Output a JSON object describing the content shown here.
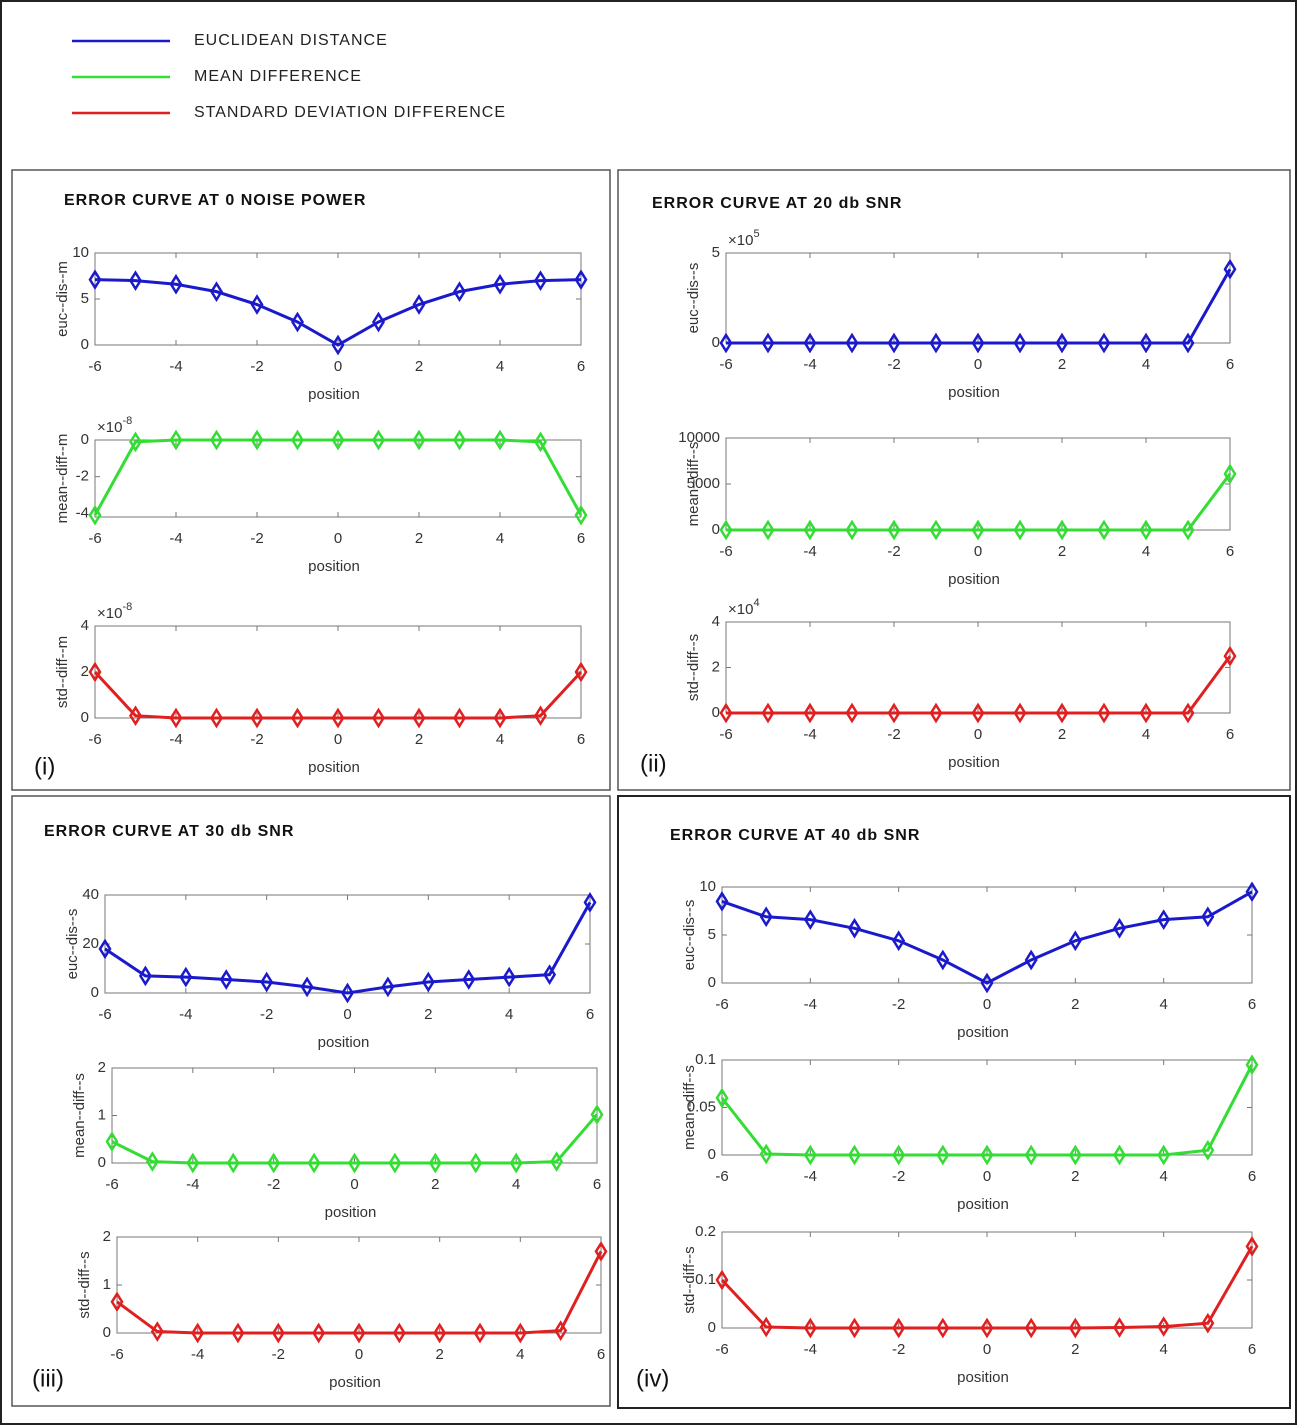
{
  "chart_data": [
    {
      "type": "line",
      "title": "ERROR CURVE AT 0 NOISE POWER",
      "tag": "(i)",
      "xlabel": "position",
      "ylabel": "euc--dis--m",
      "x": [
        -6,
        -5,
        -4,
        -3,
        -2,
        -1,
        0,
        1,
        2,
        3,
        4,
        5,
        6
      ],
      "xlim": [
        -6,
        6
      ],
      "xticks": [
        -6,
        -4,
        -2,
        0,
        2,
        4,
        6
      ],
      "ylim": [
        0,
        10
      ],
      "yticks": [
        0,
        5,
        10
      ],
      "series": [
        {
          "name": "EUCLIDEAN DISTANCE",
          "color": "#1a1acc",
          "values": [
            7.1,
            7,
            6.6,
            5.8,
            4.4,
            2.5,
            0,
            2.5,
            4.4,
            5.8,
            6.6,
            7,
            7.1
          ]
        }
      ]
    },
    {
      "type": "line",
      "xlabel": "position",
      "ylabel": "mean--diff--m",
      "y_multiplier": [
        "×10",
        "-8"
      ],
      "x": [
        -6,
        -5,
        -4,
        -3,
        -2,
        -1,
        0,
        1,
        2,
        3,
        4,
        5,
        6
      ],
      "xlim": [
        -6,
        6
      ],
      "xticks": [
        -6,
        -4,
        -2,
        0,
        2,
        4,
        6
      ],
      "ylim": [
        -4.2,
        0
      ],
      "yticks": [
        -4,
        -2,
        0
      ],
      "series": [
        {
          "name": "MEAN DIFFERENCE",
          "color": "#33dd33",
          "values": [
            -4.1,
            -0.1,
            0,
            0,
            0,
            0,
            0,
            0,
            0,
            0,
            0,
            -0.1,
            -4.1
          ]
        }
      ]
    },
    {
      "type": "line",
      "xlabel": "position",
      "ylabel": "std--diff--m",
      "y_multiplier": [
        "×10",
        "-8"
      ],
      "x": [
        -6,
        -5,
        -4,
        -3,
        -2,
        -1,
        0,
        1,
        2,
        3,
        4,
        5,
        6
      ],
      "xlim": [
        -6,
        6
      ],
      "xticks": [
        -6,
        -4,
        -2,
        0,
        2,
        4,
        6
      ],
      "ylim": [
        0,
        4
      ],
      "yticks": [
        0,
        2,
        4
      ],
      "series": [
        {
          "name": "STANDARD DEVIATION DIFFERENCE",
          "color": "#e02020",
          "values": [
            2,
            0.1,
            0,
            0,
            0,
            0,
            0,
            0,
            0,
            0,
            0,
            0.1,
            2
          ]
        }
      ]
    },
    {
      "type": "line",
      "title": "ERROR CURVE AT 20 db SNR",
      "tag": "(ii)",
      "xlabel": "position",
      "ylabel": "euc--dis--s",
      "y_multiplier": [
        "×10",
        "5"
      ],
      "x": [
        -6,
        -5,
        -4,
        -3,
        -2,
        -1,
        0,
        1,
        2,
        3,
        4,
        5,
        6
      ],
      "xlim": [
        -6,
        6
      ],
      "xticks": [
        -6,
        -4,
        -2,
        0,
        2,
        4,
        6
      ],
      "ylim": [
        0,
        5
      ],
      "yticks": [
        0,
        5
      ],
      "series": [
        {
          "color": "#1a1acc",
          "values": [
            0,
            0,
            0,
            0,
            0,
            0,
            0,
            0,
            0,
            0,
            0,
            0,
            4.1
          ]
        }
      ]
    },
    {
      "type": "line",
      "xlabel": "position",
      "ylabel": "mean--diff--s",
      "x": [
        -6,
        -5,
        -4,
        -3,
        -2,
        -1,
        0,
        1,
        2,
        3,
        4,
        5,
        6
      ],
      "xlim": [
        -6,
        6
      ],
      "xticks": [
        -6,
        -4,
        -2,
        0,
        2,
        4,
        6
      ],
      "ylim": [
        0,
        10000
      ],
      "yticks": [
        0,
        5000,
        10000
      ],
      "series": [
        {
          "color": "#33dd33",
          "values": [
            0,
            0,
            0,
            0,
            0,
            0,
            0,
            0,
            0,
            0,
            0,
            0,
            6100
          ]
        }
      ]
    },
    {
      "type": "line",
      "xlabel": "position",
      "ylabel": "std--diff--s",
      "y_multiplier": [
        "×10",
        "4"
      ],
      "x": [
        -6,
        -5,
        -4,
        -3,
        -2,
        -1,
        0,
        1,
        2,
        3,
        4,
        5,
        6
      ],
      "xlim": [
        -6,
        6
      ],
      "xticks": [
        -6,
        -4,
        -2,
        0,
        2,
        4,
        6
      ],
      "ylim": [
        0,
        4
      ],
      "yticks": [
        0,
        2,
        4
      ],
      "series": [
        {
          "color": "#e02020",
          "values": [
            0,
            0,
            0,
            0,
            0,
            0,
            0,
            0,
            0,
            0,
            0,
            0,
            2.5
          ]
        }
      ]
    },
    {
      "type": "line",
      "title": "ERROR CURVE AT 30 db SNR",
      "tag": "(iii)",
      "xlabel": "position",
      "ylabel": "euc--dis--s",
      "x": [
        -6,
        -5,
        -4,
        -3,
        -2,
        -1,
        0,
        1,
        2,
        3,
        4,
        5,
        6
      ],
      "xlim": [
        -6,
        6
      ],
      "xticks": [
        -6,
        -4,
        -2,
        0,
        2,
        4,
        6
      ],
      "ylim": [
        0,
        40
      ],
      "yticks": [
        0,
        20,
        40
      ],
      "series": [
        {
          "color": "#1a1acc",
          "values": [
            18,
            7,
            6.5,
            5.5,
            4.5,
            2.5,
            0,
            2.5,
            4.5,
            5.5,
            6.5,
            7.5,
            37
          ]
        }
      ]
    },
    {
      "type": "line",
      "xlabel": "position",
      "ylabel": "mean--diff--s",
      "x": [
        -6,
        -5,
        -4,
        -3,
        -2,
        -1,
        0,
        1,
        2,
        3,
        4,
        5,
        6
      ],
      "xlim": [
        -6,
        6
      ],
      "xticks": [
        -6,
        -4,
        -2,
        0,
        2,
        4,
        6
      ],
      "ylim": [
        0,
        2
      ],
      "yticks": [
        0,
        1,
        2
      ],
      "series": [
        {
          "color": "#33dd33",
          "values": [
            0.45,
            0.03,
            0,
            0,
            0,
            0,
            0,
            0,
            0,
            0,
            0,
            0.03,
            1.02
          ]
        }
      ]
    },
    {
      "type": "line",
      "xlabel": "position",
      "ylabel": "std--diff--s",
      "x": [
        -6,
        -5,
        -4,
        -3,
        -2,
        -1,
        0,
        1,
        2,
        3,
        4,
        5,
        6
      ],
      "xlim": [
        -6,
        6
      ],
      "xticks": [
        -6,
        -4,
        -2,
        0,
        2,
        4,
        6
      ],
      "ylim": [
        0,
        2
      ],
      "yticks": [
        0,
        1,
        2
      ],
      "series": [
        {
          "color": "#e02020",
          "values": [
            0.65,
            0.03,
            0,
            0,
            0,
            0,
            0,
            0,
            0,
            0,
            0,
            0.05,
            1.7
          ]
        }
      ]
    },
    {
      "type": "line",
      "title": "ERROR CURVE AT 40 db SNR",
      "tag": "(iv)",
      "xlabel": "position",
      "ylabel": "euc--dis--s",
      "x": [
        -6,
        -5,
        -4,
        -3,
        -2,
        -1,
        0,
        1,
        2,
        3,
        4,
        5,
        6
      ],
      "xlim": [
        -6,
        6
      ],
      "xticks": [
        -6,
        -4,
        -2,
        0,
        2,
        4,
        6
      ],
      "ylim": [
        0,
        10
      ],
      "yticks": [
        0,
        5,
        10
      ],
      "series": [
        {
          "color": "#1a1acc",
          "values": [
            8.5,
            6.9,
            6.6,
            5.7,
            4.4,
            2.4,
            0,
            2.4,
            4.4,
            5.7,
            6.6,
            6.9,
            9.5
          ]
        }
      ]
    },
    {
      "type": "line",
      "xlabel": "position",
      "ylabel": "mean--diff--s",
      "x": [
        -6,
        -5,
        -4,
        -3,
        -2,
        -1,
        0,
        1,
        2,
        3,
        4,
        5,
        6
      ],
      "xlim": [
        -6,
        6
      ],
      "xticks": [
        -6,
        -4,
        -2,
        0,
        2,
        4,
        6
      ],
      "ylim": [
        0,
        0.1
      ],
      "yticks": [
        0,
        0.05,
        0.1
      ],
      "series": [
        {
          "color": "#33dd33",
          "values": [
            0.06,
            0.001,
            0,
            0,
            0,
            0,
            0,
            0,
            0,
            0,
            0,
            0.005,
            0.095
          ]
        }
      ]
    },
    {
      "type": "line",
      "xlabel": "position",
      "ylabel": "std--diff--s",
      "x": [
        -6,
        -5,
        -4,
        -3,
        -2,
        -1,
        0,
        1,
        2,
        3,
        4,
        5,
        6
      ],
      "xlim": [
        -6,
        6
      ],
      "xticks": [
        -6,
        -4,
        -2,
        0,
        2,
        4,
        6
      ],
      "ylim": [
        0,
        0.2
      ],
      "yticks": [
        0,
        0.1,
        0.2
      ],
      "series": [
        {
          "color": "#e02020",
          "values": [
            0.1,
            0.002,
            0,
            0,
            0,
            0,
            0,
            0,
            0,
            0.001,
            0.003,
            0.01,
            0.17
          ]
        }
      ]
    }
  ]
}
